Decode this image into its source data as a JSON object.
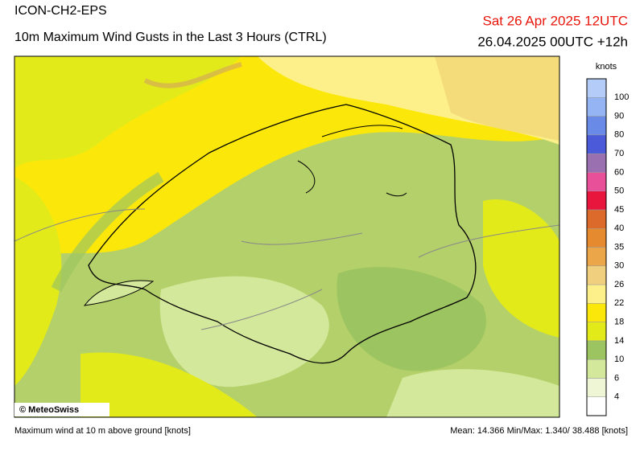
{
  "header": {
    "model": "ICON-CH2-EPS",
    "title": "10m Maximum Wind Gusts in the Last 3 Hours (CTRL)",
    "valid_time": "Sat 26 Apr 2025 12UTC",
    "run": "26.04.2025 00UTC +12h"
  },
  "legend": {
    "unit": "knots",
    "levels": [
      4,
      6,
      10,
      14,
      18,
      22,
      26,
      30,
      35,
      40,
      45,
      50,
      60,
      70,
      80,
      90,
      100
    ],
    "colors": [
      "#ffffff",
      "#eef6d6",
      "#d3e89a",
      "#9cc460",
      "#e2ea1a",
      "#fbe80a",
      "#fdf08a",
      "#f0d07e",
      "#eba64a",
      "#e68a30",
      "#dc6a2a",
      "#e8163c",
      "#e8509a",
      "#9a70b0",
      "#4a5ad8",
      "#6a8ae8",
      "#94b4f4",
      "#b4ccf8"
    ]
  },
  "map": {
    "credit": "© MeteoSwiss"
  },
  "footer": {
    "description": "Maximum wind at 10 m above ground [knots]",
    "stats": "Mean:  14.366 Min/Max:   1.340/ 38.488 [knots]"
  }
}
